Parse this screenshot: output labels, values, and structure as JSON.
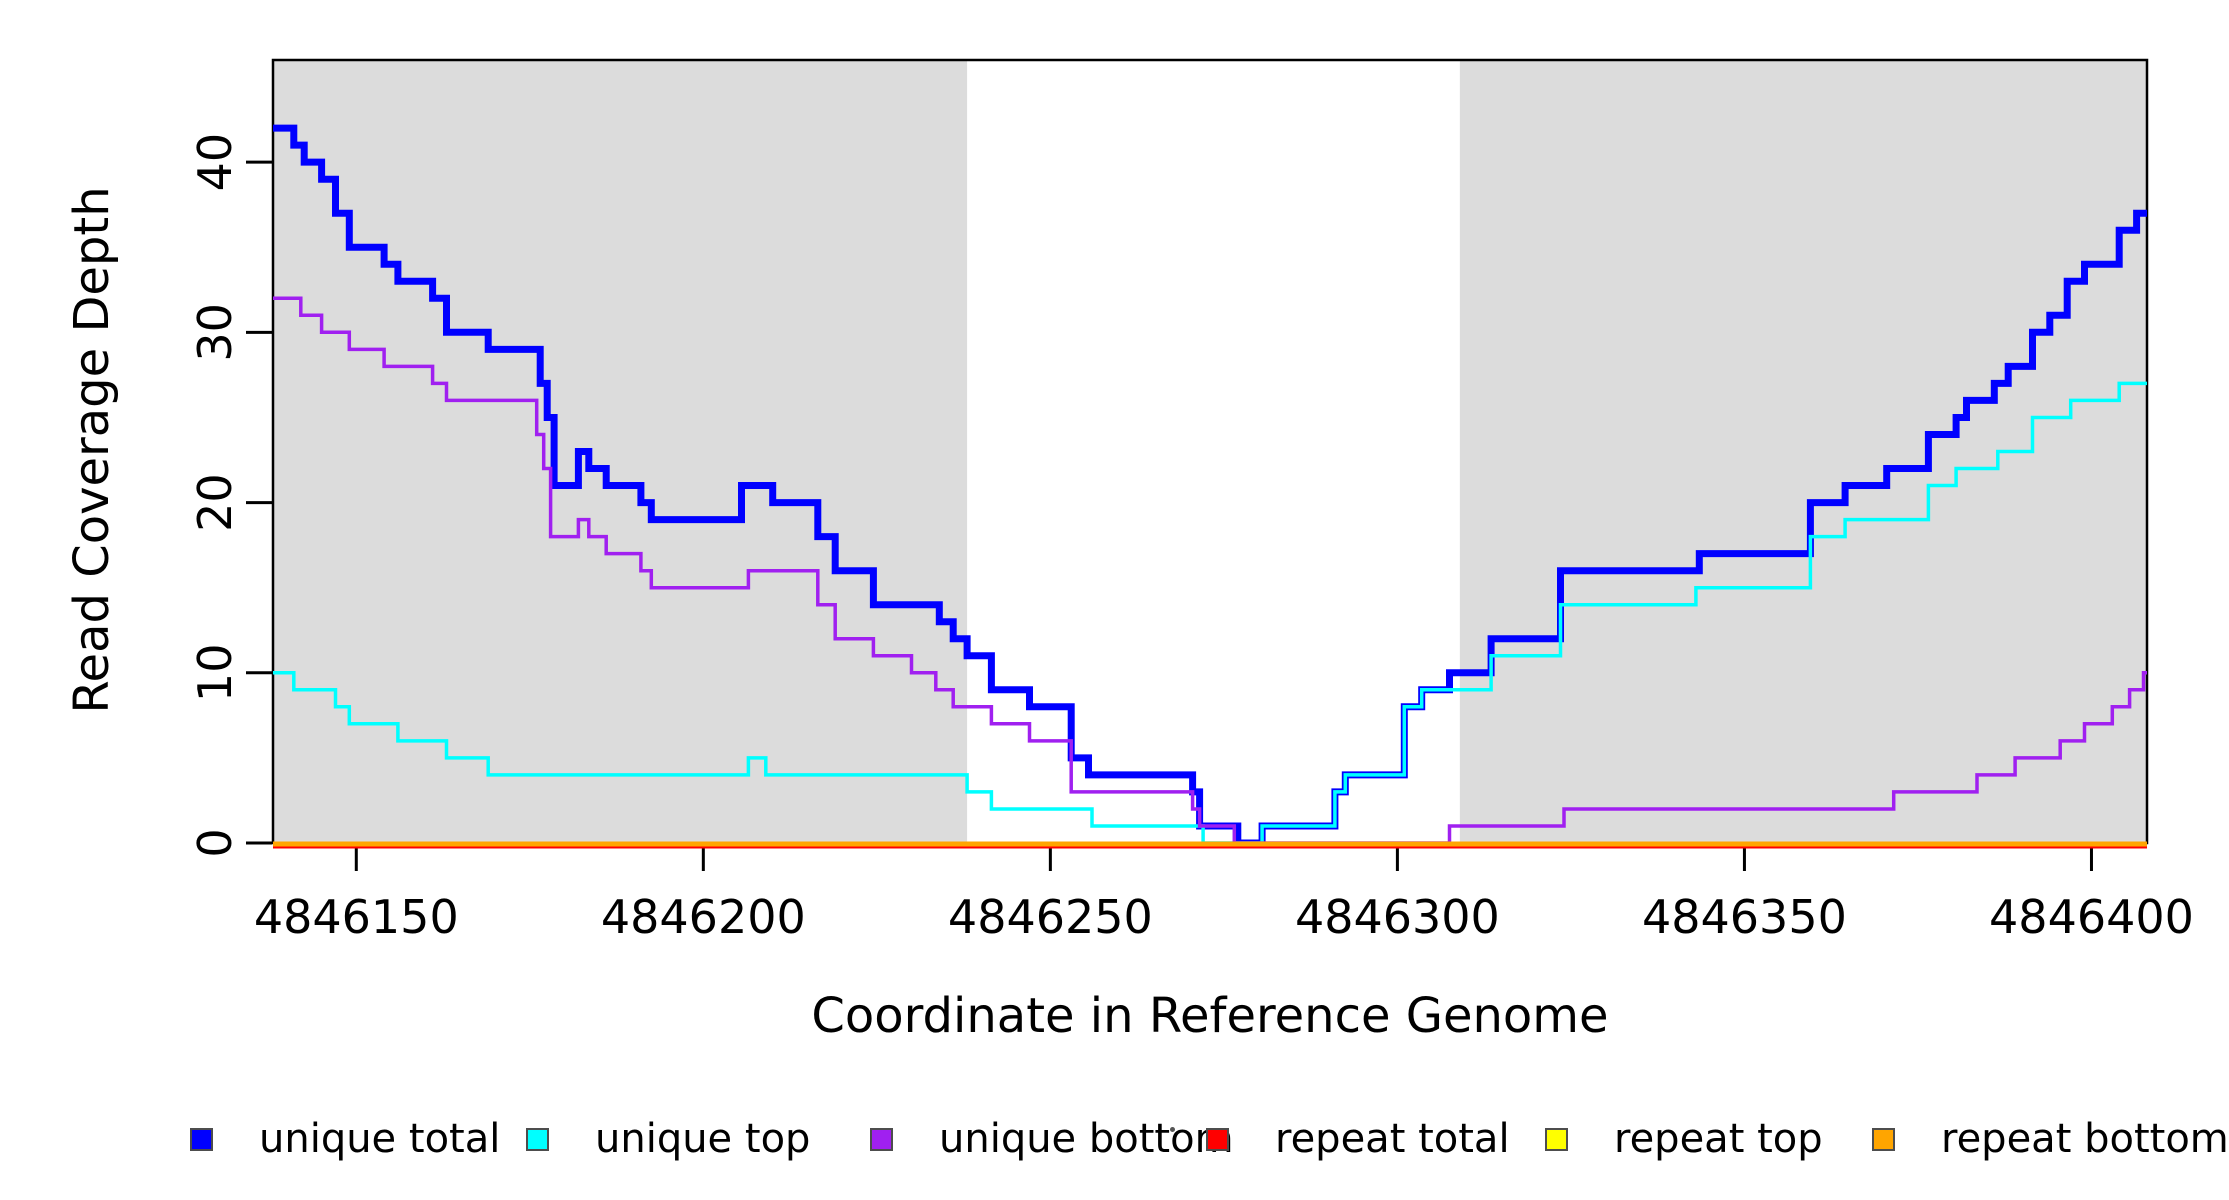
{
  "figure": {
    "background": "#ffffff",
    "band_color": "#DCDCDC",
    "axis_color": "#000000"
  },
  "chart_data": {
    "type": "line",
    "subtype": "step",
    "title": "",
    "xlabel": "Coordinate in Reference Genome",
    "ylabel": "Read Coverage Depth",
    "xlim": [
      4846138,
      4846408
    ],
    "ylim": [
      0,
      46
    ],
    "grid": false,
    "legend_position": "bottom",
    "x_ticks": [
      4846150,
      4846200,
      4846250,
      4846300,
      4846350,
      4846400
    ],
    "y_ticks": [
      0,
      10,
      20,
      30,
      40
    ],
    "shaded_regions": [
      {
        "x0": 4846138,
        "x1": 4846238,
        "color": "#DCDCDC"
      },
      {
        "x0": 4846309,
        "x1": 4846408,
        "color": "#DCDCDC"
      }
    ],
    "series": [
      {
        "name": "unique total",
        "color": "#0000FF",
        "width": 7,
        "steps": [
          [
            4846138,
            42
          ],
          [
            4846141,
            41
          ],
          [
            4846142.5,
            40
          ],
          [
            4846145,
            39
          ],
          [
            4846147,
            37
          ],
          [
            4846149,
            35
          ],
          [
            4846154,
            34
          ],
          [
            4846156,
            33
          ],
          [
            4846161,
            32
          ],
          [
            4846163,
            30
          ],
          [
            4846169,
            29
          ],
          [
            4846176.5,
            27
          ],
          [
            4846177.5,
            25
          ],
          [
            4846178.5,
            21
          ],
          [
            4846182,
            23
          ],
          [
            4846183.5,
            22
          ],
          [
            4846186,
            21
          ],
          [
            4846191,
            20
          ],
          [
            4846192.5,
            19
          ],
          [
            4846205.5,
            21
          ],
          [
            4846210,
            20
          ],
          [
            4846216.5,
            18
          ],
          [
            4846219,
            16
          ],
          [
            4846224.5,
            14
          ],
          [
            4846234,
            13
          ],
          [
            4846236,
            12
          ],
          [
            4846238,
            11
          ],
          [
            4846241.5,
            9
          ],
          [
            4846247,
            8
          ],
          [
            4846253,
            5
          ],
          [
            4846255.5,
            4
          ],
          [
            4846270.5,
            3
          ],
          [
            4846271.5,
            1
          ],
          [
            4846277,
            0
          ],
          [
            4846280.5,
            1
          ],
          [
            4846291,
            3
          ],
          [
            4846292.5,
            4
          ],
          [
            4846301,
            8
          ],
          [
            4846303.5,
            9
          ],
          [
            4846307.5,
            10
          ],
          [
            4846313.5,
            12
          ],
          [
            4846323.5,
            16
          ],
          [
            4846343.5,
            17
          ],
          [
            4846359.5,
            20
          ],
          [
            4846364.5,
            21
          ],
          [
            4846370.5,
            22
          ],
          [
            4846376.5,
            24
          ],
          [
            4846380.5,
            25
          ],
          [
            4846382,
            26
          ],
          [
            4846386,
            27
          ],
          [
            4846388,
            28
          ],
          [
            4846391.5,
            30
          ],
          [
            4846394,
            31
          ],
          [
            4846396.5,
            33
          ],
          [
            4846399,
            34
          ],
          [
            4846404,
            36
          ],
          [
            4846406.5,
            37
          ]
        ]
      },
      {
        "name": "unique top",
        "color": "#00FFFF",
        "width": 3.5,
        "steps": [
          [
            4846138,
            10
          ],
          [
            4846141,
            9
          ],
          [
            4846147,
            8
          ],
          [
            4846149,
            7
          ],
          [
            4846156,
            6
          ],
          [
            4846163,
            5
          ],
          [
            4846169,
            4
          ],
          [
            4846206.5,
            5
          ],
          [
            4846209,
            4
          ],
          [
            4846238,
            3
          ],
          [
            4846241.5,
            2
          ],
          [
            4846256,
            1
          ],
          [
            4846272,
            0
          ],
          [
            4846280.5,
            1
          ],
          [
            4846291,
            3
          ],
          [
            4846292.5,
            4
          ],
          [
            4846301,
            8
          ],
          [
            4846303.5,
            9
          ],
          [
            4846313.5,
            11
          ],
          [
            4846323.5,
            14
          ],
          [
            4846343,
            15
          ],
          [
            4846359.5,
            18
          ],
          [
            4846364.5,
            19
          ],
          [
            4846376.5,
            21
          ],
          [
            4846380.5,
            22
          ],
          [
            4846386.5,
            23
          ],
          [
            4846391.5,
            25
          ],
          [
            4846397,
            26
          ],
          [
            4846404,
            27
          ]
        ]
      },
      {
        "name": "unique bottom",
        "color": "#A020F0",
        "width": 3.5,
        "steps": [
          [
            4846138,
            32
          ],
          [
            4846142,
            31
          ],
          [
            4846145,
            30
          ],
          [
            4846149,
            29
          ],
          [
            4846154,
            28
          ],
          [
            4846161,
            27
          ],
          [
            4846163,
            26
          ],
          [
            4846176,
            24
          ],
          [
            4846177,
            22
          ],
          [
            4846178,
            18
          ],
          [
            4846182,
            19
          ],
          [
            4846183.5,
            18
          ],
          [
            4846186,
            17
          ],
          [
            4846191,
            16
          ],
          [
            4846192.5,
            15
          ],
          [
            4846206.5,
            16
          ],
          [
            4846216.5,
            14
          ],
          [
            4846219,
            12
          ],
          [
            4846224.5,
            11
          ],
          [
            4846230,
            10
          ],
          [
            4846233.5,
            9
          ],
          [
            4846236,
            8
          ],
          [
            4846241.5,
            7
          ],
          [
            4846247,
            6
          ],
          [
            4846253,
            3
          ],
          [
            4846270.5,
            2
          ],
          [
            4846271.5,
            1
          ],
          [
            4846276.5,
            0
          ],
          [
            4846307.5,
            1
          ],
          [
            4846324,
            2
          ],
          [
            4846371.5,
            3
          ],
          [
            4846383.5,
            4
          ],
          [
            4846389,
            5
          ],
          [
            4846395.5,
            6
          ],
          [
            4846399,
            7
          ],
          [
            4846403,
            8
          ],
          [
            4846405.5,
            9
          ],
          [
            4846407.5,
            10
          ]
        ]
      },
      {
        "name": "repeat total",
        "color": "#FF0000",
        "width": 4,
        "y_offset": 3.5,
        "steps": [
          [
            4846138,
            0
          ]
        ]
      },
      {
        "name": "repeat top",
        "color": "#FFFF00",
        "width": 4,
        "y_offset": 1,
        "steps": [
          [
            4846138,
            0
          ]
        ]
      },
      {
        "name": "repeat bottom",
        "color": "#FFA500",
        "width": 5,
        "y_offset": 1,
        "steps": [
          [
            4846138,
            0
          ]
        ]
      }
    ]
  },
  "legend": {
    "items": [
      {
        "label": "unique total",
        "color": "#0000FF"
      },
      {
        "label": "unique top",
        "color": "#00FFFF"
      },
      {
        "label": "unique bottom",
        "color": "#A020F0"
      },
      {
        "label": "repeat total",
        "color": "#FF0000"
      },
      {
        "label": "repeat top",
        "color": "#FFFF00"
      },
      {
        "label": "repeat bottom",
        "color": "#FFA500"
      }
    ]
  }
}
